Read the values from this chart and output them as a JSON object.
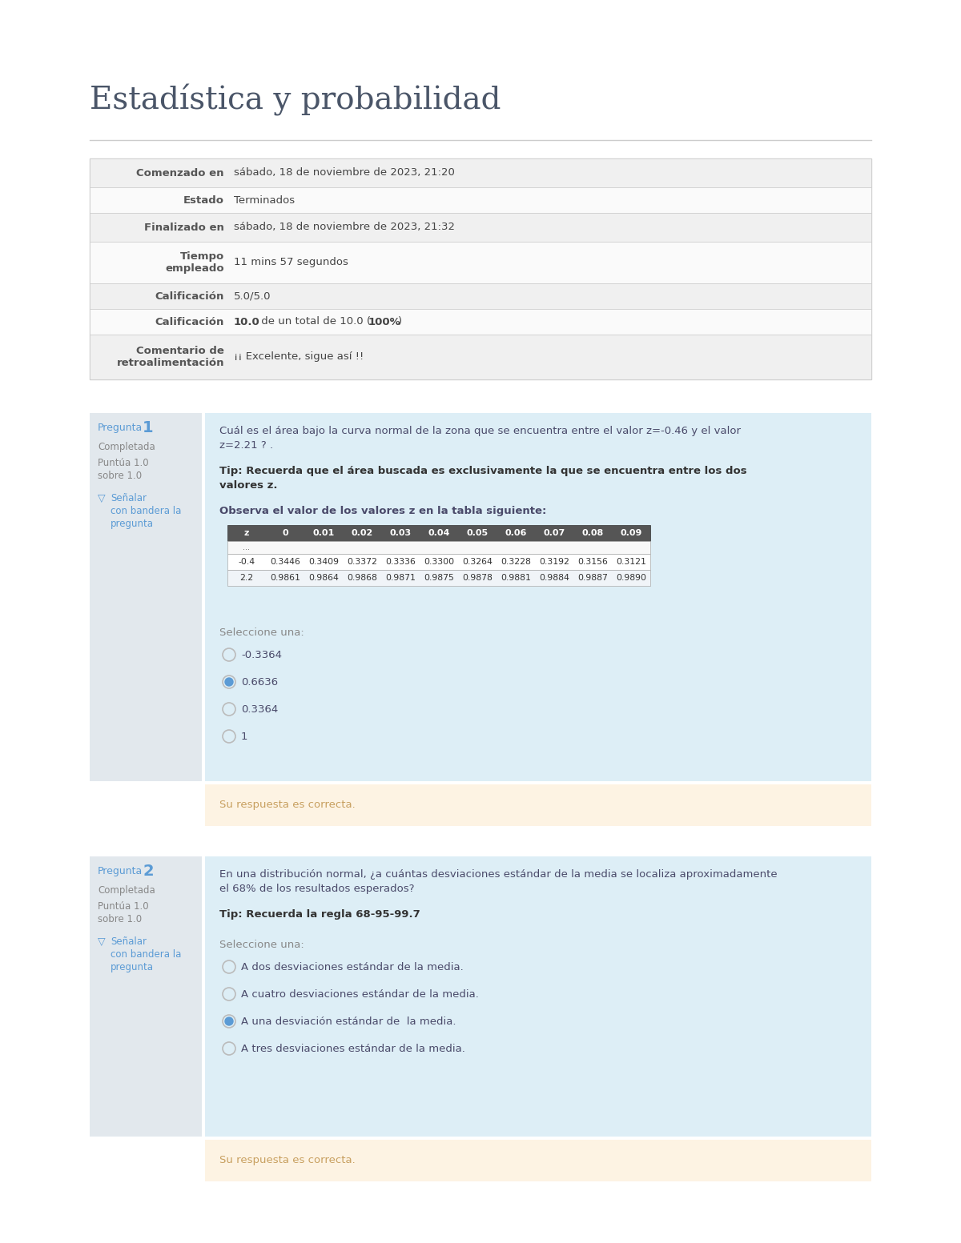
{
  "title": "Estadística y probabilidad",
  "title_color": "#4a5568",
  "bg_color": "#ffffff",
  "info_table": [
    [
      "Comenzado en",
      "sábado, 18 de noviembre de 2023, 21:20"
    ],
    [
      "Estado",
      "Terminados"
    ],
    [
      "Finalizado en",
      "sábado, 18 de noviembre de 2023, 21:32"
    ],
    [
      "Tiempo\nempleado",
      "11 mins 57 segundos"
    ],
    [
      "Calificación",
      "5.0/5.0"
    ],
    [
      "Calificación",
      "10.0 de un total de 10.0 (100%)"
    ],
    [
      "Comentario de\nretroalimentación",
      "¡¡ Excelente, sigue así !!"
    ]
  ],
  "question1": {
    "label": "Pregunta",
    "number": "1",
    "status": "Completada",
    "points_line1": "Puntúa 1.0",
    "points_line2": "sobre 1.0",
    "flag_text_line1": "Señalar",
    "flag_text_line2": "con bandera la",
    "flag_text_line3": "pregunta",
    "question_text_line1": "Cuál es el área bajo la curva normal de la zona que se encuentra entre el valor z=-0.46 y el valor",
    "question_text_line2": "z=2.21 ? .",
    "tip_text_line1": "Tip: Recuerda que el área buscada es exclusivamente la que se encuentra entre los dos",
    "tip_text_line2": "valores z.",
    "table_label": "Observa el valor de los valores z en la tabla siguiente:",
    "z_headers": [
      "z",
      "0",
      "0.01",
      "0.02",
      "0.03",
      "0.04",
      "0.05",
      "0.06",
      "0.07",
      "0.08",
      "0.09"
    ],
    "z_row0": [
      "...",
      "",
      "",
      "",
      "",
      "",
      "",
      "",
      "",
      "",
      ""
    ],
    "z_rows": [
      [
        "-0.4",
        "0.3446",
        "0.3409",
        "0.3372",
        "0.3336",
        "0.3300",
        "0.3264",
        "0.3228",
        "0.3192",
        "0.3156",
        "0.3121"
      ],
      [
        "2.2",
        "0.9861",
        "0.9864",
        "0.9868",
        "0.9871",
        "0.9875",
        "0.9878",
        "0.9881",
        "0.9884",
        "0.9887",
        "0.9890"
      ]
    ],
    "select_label": "Seleccione una:",
    "options": [
      "-0.3364",
      "0.6636",
      "0.3364",
      "1"
    ],
    "selected": 1,
    "correct_text": "Su respuesta es correcta."
  },
  "question2": {
    "label": "Pregunta",
    "number": "2",
    "status": "Completada",
    "points_line1": "Puntúa 1.0",
    "points_line2": "sobre 1.0",
    "flag_text_line1": "Señalar",
    "flag_text_line2": "con bandera la",
    "flag_text_line3": "pregunta",
    "question_text_line1": "En una distribución normal, ¿a cuántas desviaciones estándar de la media se localiza aproximadamente",
    "question_text_line2": "el 68% de los resultados esperados?",
    "tip_text": "Tip: Recuerda la regla 68-95-99.7",
    "select_label": "Seleccione una:",
    "options": [
      "A dos desviaciones estándar de la media.",
      "A cuatro desviaciones estándar de la media.",
      "A una desviación estándar de  la media.",
      "A tres desviaciones estándar de la media."
    ],
    "selected": 2,
    "correct_text": "Su respuesta es correcta."
  },
  "sidebar_bg": "#e2e8ed",
  "question_bg": "#ddeef6",
  "correct_bg": "#fdf3e3",
  "info_bg": "#f8f8f8",
  "info_border": "#cccccc",
  "label_color": "#555555",
  "value_color": "#444444",
  "question_label_color": "#5b9bd5",
  "question_text_color": "#4a4a6a",
  "tip_bold_color": "#333333",
  "correct_color": "#c8a060",
  "flag_color": "#5b9bd5",
  "table_header_bg": "#555555",
  "table_header_color": "#ffffff"
}
